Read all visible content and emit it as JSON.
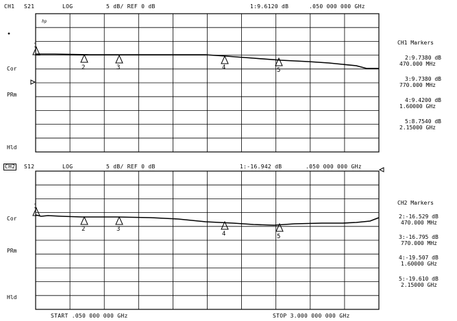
{
  "ch1": {
    "header": {
      "channel": "CH1",
      "param": "S21",
      "format": "LOG",
      "scale": "5 dB/ REF 0 dB",
      "marker_readout": "1:9.6120 dB",
      "marker_freq": ".050 000 000 GHz"
    },
    "hp_logo": "hp",
    "side_labels": {
      "cor": "Cor",
      "prm": "PRm",
      "hld": "Hld"
    },
    "markers_title": "CH1 Markers",
    "markers": [
      {
        "num": "1",
        "value": "",
        "freq": ""
      },
      {
        "num": "2",
        "value": "2:9.7380 dB",
        "freq": "470.000 MHz"
      },
      {
        "num": "3",
        "value": "3:9.7380 dB",
        "freq": "770.000 MHz"
      },
      {
        "num": "4",
        "value": "4:9.4200 dB",
        "freq": "1.60000 GHz"
      },
      {
        "num": "5",
        "value": "5:8.7540 dB",
        "freq": "2.15000 GHz"
      }
    ]
  },
  "ch2": {
    "header": {
      "channel": "CH2",
      "param": "S12",
      "format": "LOG",
      "scale": "5 dB/ REF 0 dB",
      "marker_readout": "1:-16.942 dB",
      "marker_freq": ".050 000 000 GHz"
    },
    "side_labels": {
      "cor": "Cor",
      "prm": "PRm",
      "hld": "Hld"
    },
    "markers_title": "CH2 Markers",
    "markers": [
      {
        "num": "1",
        "value": "",
        "freq": ""
      },
      {
        "num": "2",
        "value": "2:-16.529 dB",
        "freq": "470.000 MHz"
      },
      {
        "num": "3",
        "value": "3:-16.795 dB",
        "freq": "770.000 MHz"
      },
      {
        "num": "4",
        "value": "4:-19.507 dB",
        "freq": "1.60000 GHz"
      },
      {
        "num": "5",
        "value": "5:-19.610 dB",
        "freq": "2.15000 GHz"
      }
    ]
  },
  "footer": {
    "start": "START .050 000 000 GHz",
    "stop": "STOP 3.000 000 000 GHz"
  },
  "colors": {
    "trace": "#000000",
    "grid": "#000000",
    "background": "#ffffff"
  }
}
